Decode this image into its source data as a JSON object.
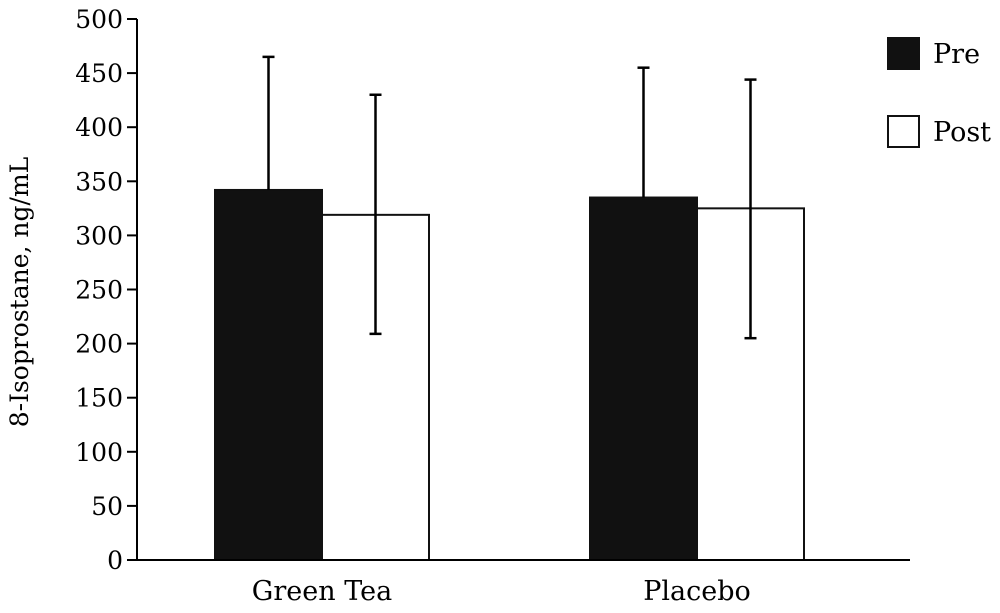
{
  "chart_data": {
    "type": "bar",
    "ylabel": "8-Isoprostane, ng/mL",
    "xlabel": "",
    "ylim": [
      0,
      500
    ],
    "yticks": [
      0,
      50,
      100,
      150,
      200,
      250,
      300,
      350,
      400,
      450,
      500
    ],
    "categories": [
      "Green Tea",
      "Placebo"
    ],
    "series": [
      {
        "name": "Pre",
        "values": [
          342,
          335
        ],
        "error_upper": [
          465,
          455
        ],
        "color": "#111111",
        "fill": "#111111"
      },
      {
        "name": "Post",
        "values": [
          319,
          325
        ],
        "error_upper": [
          430,
          444
        ],
        "error_lower": [
          209,
          205
        ],
        "color": "#111111",
        "fill": "#ffffff"
      }
    ],
    "legend_position": "top-right",
    "grid": false
  }
}
